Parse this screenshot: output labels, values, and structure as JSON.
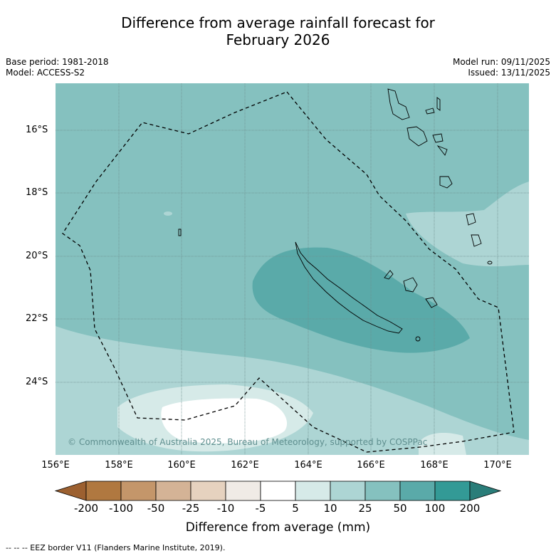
{
  "title_line1": "Difference from average rainfall forecast for",
  "title_line2": "February 2026",
  "base_period": "Base period: 1981-2018",
  "model": "Model: ACCESS-S2",
  "model_run": "Model run: 09/11/2025",
  "issued": "Issued: 13/11/2025",
  "copyright": "© Commonwealth of Australia 2025, Bureau of Meteorology, supported by COSPPac",
  "footer": "-- -- -- EEZ border V11 (Flanders Marine Institute, 2019).",
  "lat_labels": [
    "16°S",
    "18°S",
    "20°S",
    "22°S",
    "24°S"
  ],
  "lon_labels": [
    "156°E",
    "158°E",
    "160°E",
    "162°E",
    "164°E",
    "166°E",
    "168°E",
    "170°E"
  ],
  "colorbar": {
    "title": "Difference from average (mm)",
    "ticks": [
      "-200",
      "-100",
      "-50",
      "-25",
      "-10",
      "-5",
      "5",
      "10",
      "25",
      "50",
      "100",
      "200"
    ],
    "colors": [
      "#9c6030",
      "#b07840",
      "#c4966a",
      "#d4b396",
      "#e6d2bf",
      "#f0ebe6",
      "#ffffff",
      "#d6eae8",
      "#add5d4",
      "#85c1bf",
      "#5aaaa9",
      "#339a96",
      "#2a7d79"
    ]
  }
}
